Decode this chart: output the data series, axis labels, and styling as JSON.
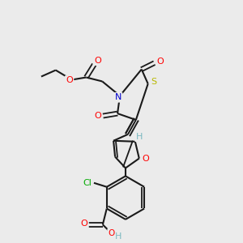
{
  "bg_color": "#ebebeb",
  "bond_color": "#1a1a1a",
  "atom_colors": {
    "O": "#ff0000",
    "N": "#0000cc",
    "S": "#b8b800",
    "Cl": "#00aa00",
    "H": "#7ab8c0",
    "C": "#1a1a1a"
  },
  "figsize": [
    3.0,
    3.0
  ],
  "dpi": 100
}
